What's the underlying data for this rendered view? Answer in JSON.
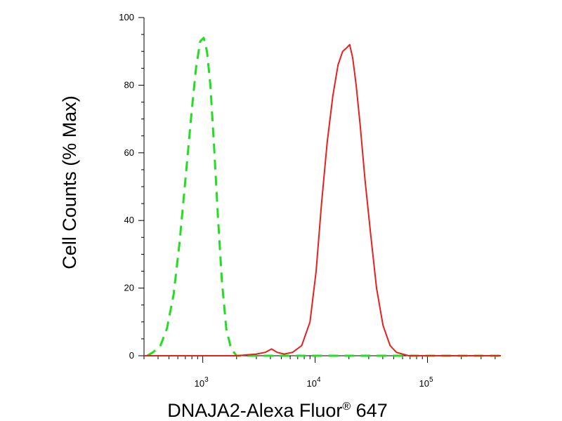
{
  "chart_data": {
    "type": "line",
    "title": "",
    "xlabel": "DNAJA2-Alexa Fluor",
    "xlabel_superscript": "®",
    "xlabel_suffix": " 647",
    "ylabel": "Cell Counts (% Max)",
    "xscale": "log",
    "xlim": [
      300,
      450000
    ],
    "ylim": [
      0,
      100
    ],
    "x_tick_labels": [
      {
        "base": "10",
        "exp": "3",
        "value": 1000
      },
      {
        "base": "10",
        "exp": "4",
        "value": 10000
      },
      {
        "base": "10",
        "exp": "5",
        "value": 100000
      }
    ],
    "y_ticks": [
      0,
      20,
      40,
      60,
      80,
      100
    ],
    "y_tick_labels": [
      "0",
      "20",
      "40",
      "60",
      "80",
      "100"
    ],
    "grid": false,
    "legend": "none",
    "series": [
      {
        "color": "#22dd22",
        "style": "dashed",
        "x": [
          320,
          360,
          420,
          480,
          550,
          620,
          700,
          790,
          870,
          950,
          1020,
          1090,
          1170,
          1260,
          1360,
          1480,
          1620,
          1790,
          2000,
          2500,
          4000,
          10000,
          30000,
          100000,
          450000
        ],
        "y": [
          0,
          1,
          3,
          8,
          18,
          33,
          52,
          71,
          85,
          93,
          94,
          90,
          80,
          62,
          42,
          22,
          8,
          2,
          0,
          0,
          0,
          0,
          0,
          0,
          0
        ]
      },
      {
        "color": "#e8201c",
        "style": "solid",
        "x": [
          300,
          2000,
          3000,
          3600,
          4100,
          4600,
          5300,
          6300,
          7600,
          9000,
          10200,
          11400,
          12800,
          14400,
          16000,
          17600,
          19000,
          20300,
          21600,
          23200,
          25200,
          27800,
          31200,
          35200,
          40200,
          46500,
          53000,
          60000,
          68000,
          80000,
          120000,
          450000
        ],
        "y": [
          0,
          0,
          0.5,
          1,
          2,
          1,
          0.5,
          1,
          3,
          10,
          25,
          45,
          63,
          77,
          86,
          90,
          91,
          92,
          88,
          80,
          68,
          52,
          36,
          20,
          9,
          3,
          1,
          0.5,
          0,
          0,
          0,
          0
        ]
      }
    ]
  }
}
